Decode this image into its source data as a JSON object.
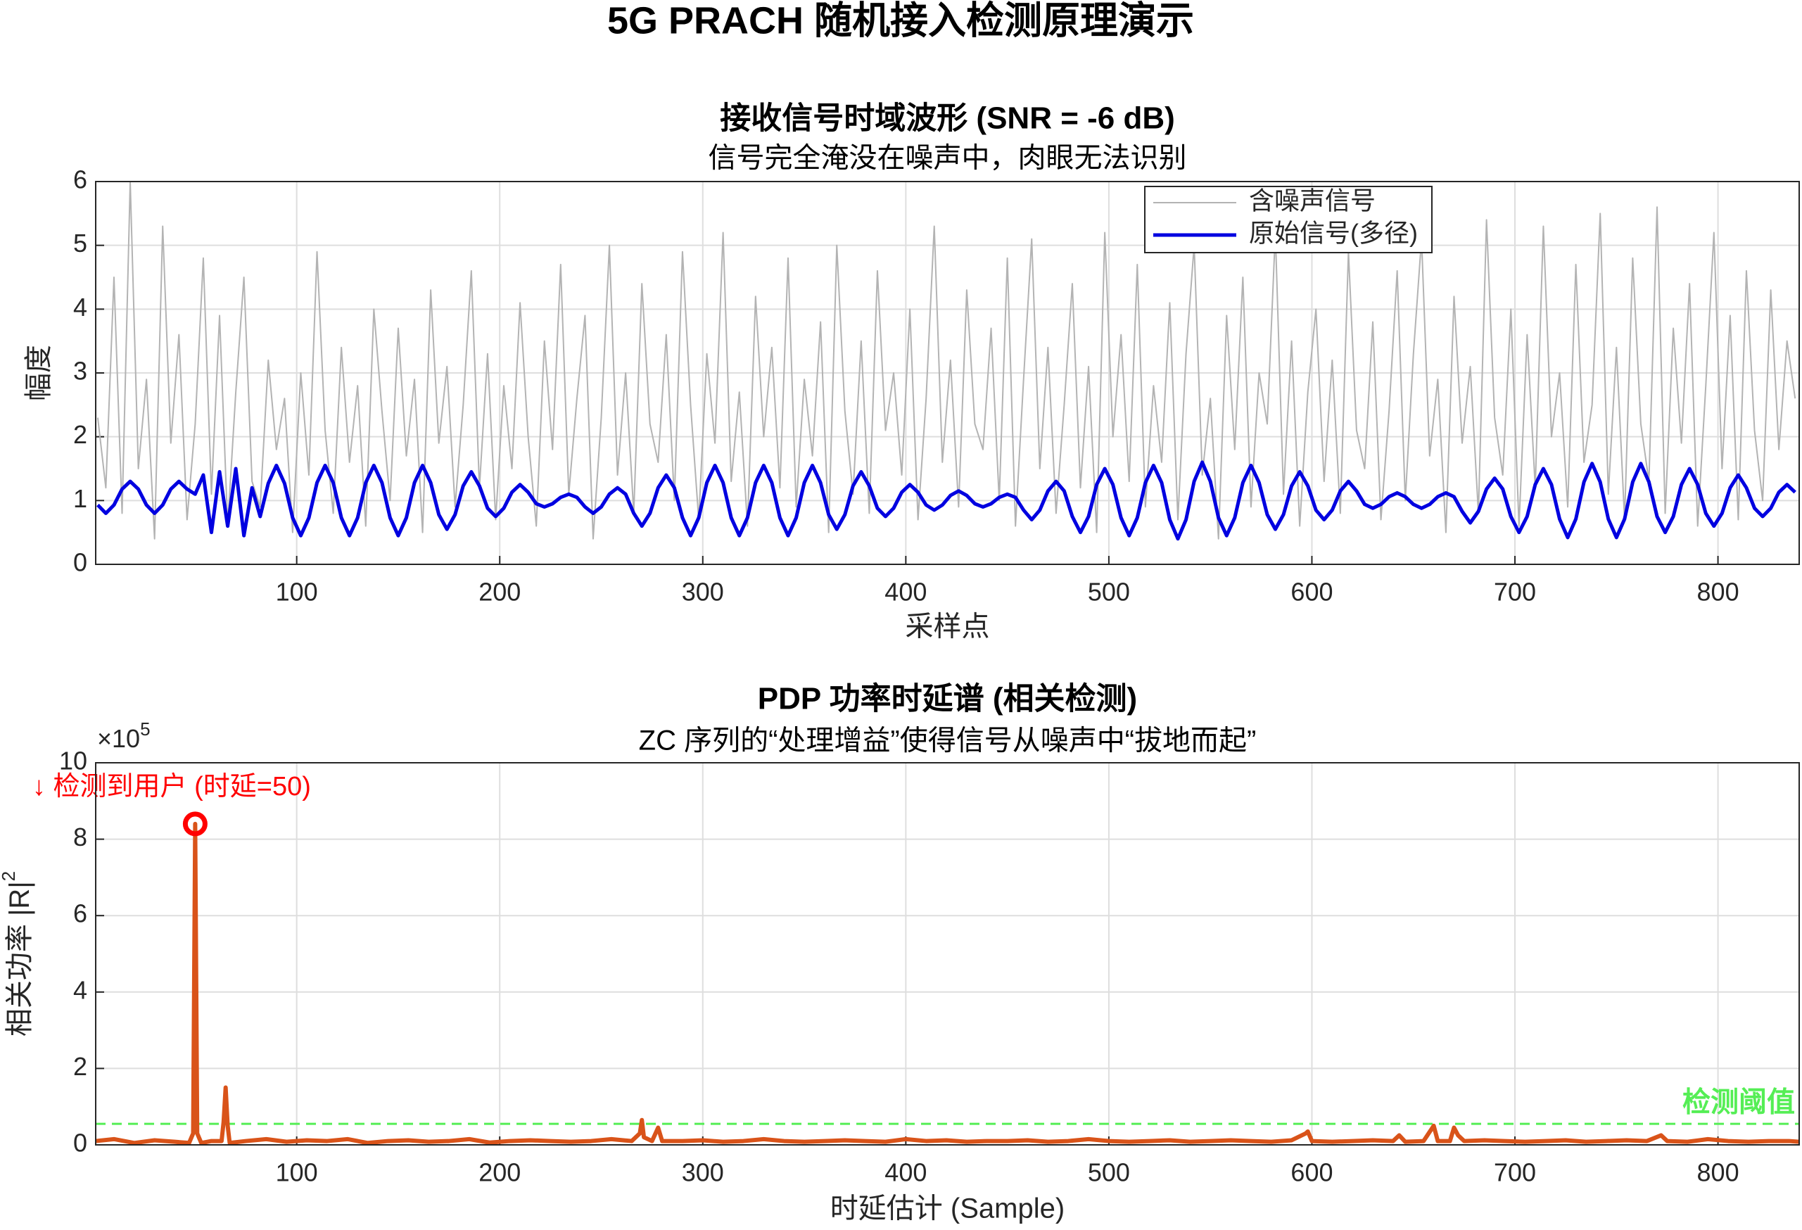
{
  "title": "5G PRACH 随机接入检测原理演示",
  "chart_data": [
    {
      "type": "line",
      "title": "接收信号时域波形 (SNR = -6 dB)",
      "subtitle": "信号完全淹没在噪声中，肉眼无法识别",
      "xlabel": "采样点",
      "ylabel": "幅度",
      "grid": true,
      "legend": "top-right",
      "xlim": [
        1,
        840
      ],
      "xticks": [
        100,
        200,
        300,
        400,
        500,
        600,
        700,
        800
      ],
      "ylim": [
        0,
        6
      ],
      "yticks": [
        0,
        1,
        2,
        3,
        4,
        5,
        6
      ],
      "x": [
        2,
        6,
        10,
        14,
        18,
        22,
        26,
        30,
        34,
        38,
        42,
        46,
        50,
        54,
        58,
        62,
        66,
        70,
        74,
        78,
        82,
        86,
        90,
        94,
        98,
        102,
        106,
        110,
        114,
        118,
        122,
        126,
        130,
        134,
        138,
        142,
        146,
        150,
        154,
        158,
        162,
        166,
        170,
        174,
        178,
        182,
        186,
        190,
        194,
        198,
        202,
        206,
        210,
        214,
        218,
        222,
        226,
        230,
        234,
        238,
        242,
        246,
        250,
        254,
        258,
        262,
        266,
        270,
        274,
        278,
        282,
        286,
        290,
        294,
        298,
        302,
        306,
        310,
        314,
        318,
        322,
        326,
        330,
        334,
        338,
        342,
        346,
        350,
        354,
        358,
        362,
        366,
        370,
        374,
        378,
        382,
        386,
        390,
        394,
        398,
        402,
        406,
        410,
        414,
        418,
        422,
        426,
        430,
        434,
        438,
        442,
        446,
        450,
        454,
        458,
        462,
        466,
        470,
        474,
        478,
        482,
        486,
        490,
        494,
        498,
        502,
        506,
        510,
        514,
        518,
        522,
        526,
        530,
        534,
        538,
        542,
        546,
        550,
        554,
        558,
        562,
        566,
        570,
        574,
        578,
        582,
        586,
        590,
        594,
        598,
        602,
        606,
        610,
        614,
        618,
        622,
        626,
        630,
        634,
        638,
        642,
        646,
        650,
        654,
        658,
        662,
        666,
        670,
        674,
        678,
        682,
        686,
        690,
        694,
        698,
        702,
        706,
        710,
        714,
        718,
        722,
        726,
        730,
        734,
        738,
        742,
        746,
        750,
        754,
        758,
        762,
        766,
        770,
        774,
        778,
        782,
        786,
        790,
        794,
        798,
        802,
        806,
        810,
        814,
        818,
        822,
        826,
        830,
        834,
        838
      ],
      "series": [
        {
          "name": "含噪声信号",
          "color": "#b3b3b3",
          "width": 2,
          "values": [
            2.3,
            1.2,
            4.5,
            0.8,
            6.0,
            1.5,
            2.9,
            0.4,
            5.3,
            1.9,
            3.6,
            0.7,
            2.2,
            4.8,
            1.1,
            3.9,
            0.6,
            2.7,
            4.5,
            1.3,
            0.9,
            3.2,
            1.8,
            2.6,
            0.5,
            3.0,
            1.4,
            4.9,
            2.1,
            0.8,
            3.4,
            1.6,
            2.8,
            0.6,
            4.0,
            2.4,
            1.0,
            3.7,
            1.7,
            2.9,
            0.5,
            4.3,
            1.9,
            3.1,
            0.9,
            2.5,
            4.6,
            1.2,
            3.3,
            0.7,
            2.8,
            1.5,
            4.1,
            2.0,
            0.6,
            3.5,
            1.8,
            4.7,
            1.1,
            2.6,
            3.9,
            0.4,
            2.3,
            5.0,
            1.4,
            3.0,
            0.8,
            4.4,
            2.2,
            1.6,
            3.6,
            1.0,
            4.9,
            2.5,
            0.7,
            3.3,
            1.9,
            5.2,
            1.3,
            2.7,
            0.6,
            4.2,
            2.0,
            3.4,
            1.2,
            4.8,
            0.9,
            2.9,
            1.7,
            3.8,
            0.5,
            5.0,
            2.4,
            1.1,
            3.5,
            0.8,
            4.6,
            2.1,
            3.0,
            1.4,
            4.0,
            0.7,
            2.6,
            5.3,
            1.6,
            3.2,
            0.9,
            4.3,
            2.2,
            1.8,
            3.7,
            1.0,
            4.8,
            0.6,
            2.9,
            5.1,
            1.5,
            3.4,
            0.8,
            2.5,
            4.4,
            1.2,
            3.1,
            0.5,
            5.2,
            2.0,
            3.6,
            1.3,
            4.7,
            0.9,
            2.8,
            1.6,
            4.1,
            0.7,
            3.3,
            5.0,
            1.4,
            2.6,
            0.4,
            3.9,
            1.8,
            4.5,
            0.9,
            3.0,
            2.2,
            5.2,
            1.1,
            3.5,
            0.6,
            2.7,
            4.0,
            1.3,
            3.2,
            0.8,
            4.9,
            2.1,
            1.5,
            3.8,
            0.7,
            2.4,
            4.6,
            1.0,
            3.3,
            5.1,
            1.7,
            2.9,
            0.5,
            4.2,
            1.9,
            3.1,
            0.8,
            5.4,
            2.3,
            1.4,
            4.0,
            0.6,
            3.6,
            1.2,
            5.3,
            2.0,
            3.0,
            0.9,
            4.7,
            1.6,
            2.5,
            5.5,
            1.1,
            3.4,
            0.7,
            4.8,
            2.2,
            1.3,
            5.6,
            0.8,
            3.7,
            1.9,
            4.4,
            0.6,
            2.8,
            5.2,
            1.5,
            3.9,
            0.7,
            4.6,
            2.1,
            1.0,
            4.3,
            1.8,
            3.5,
            2.6
          ]
        },
        {
          "name": "原始信号(多径)",
          "color": "#0000e0",
          "width": 5,
          "values": [
            0.93,
            0.8,
            0.93,
            1.18,
            1.3,
            1.18,
            0.93,
            0.8,
            0.93,
            1.18,
            1.3,
            1.18,
            1.1,
            1.4,
            0.5,
            1.45,
            0.6,
            1.5,
            0.45,
            1.2,
            0.75,
            1.27,
            1.55,
            1.27,
            0.73,
            0.45,
            0.73,
            1.28,
            1.55,
            1.28,
            0.73,
            0.45,
            0.73,
            1.28,
            1.55,
            1.28,
            0.73,
            0.45,
            0.73,
            1.28,
            1.55,
            1.28,
            0.78,
            0.55,
            0.78,
            1.23,
            1.45,
            1.23,
            0.88,
            0.75,
            0.88,
            1.13,
            1.25,
            1.13,
            0.95,
            0.9,
            0.95,
            1.05,
            1.1,
            1.05,
            0.9,
            0.8,
            0.9,
            1.1,
            1.2,
            1.1,
            0.8,
            0.6,
            0.8,
            1.2,
            1.4,
            1.2,
            0.73,
            0.45,
            0.73,
            1.28,
            1.55,
            1.28,
            0.73,
            0.45,
            0.73,
            1.28,
            1.55,
            1.28,
            0.73,
            0.45,
            0.73,
            1.28,
            1.55,
            1.28,
            0.78,
            0.55,
            0.78,
            1.23,
            1.45,
            1.23,
            0.88,
            0.75,
            0.88,
            1.13,
            1.25,
            1.13,
            0.93,
            0.85,
            0.93,
            1.08,
            1.15,
            1.08,
            0.95,
            0.9,
            0.95,
            1.05,
            1.1,
            1.05,
            0.85,
            0.7,
            0.85,
            1.15,
            1.3,
            1.15,
            0.75,
            0.5,
            0.75,
            1.25,
            1.5,
            1.25,
            0.73,
            0.45,
            0.73,
            1.28,
            1.55,
            1.28,
            0.7,
            0.4,
            0.7,
            1.3,
            1.6,
            1.3,
            0.73,
            0.45,
            0.73,
            1.28,
            1.55,
            1.28,
            0.78,
            0.55,
            0.78,
            1.23,
            1.45,
            1.23,
            0.85,
            0.7,
            0.85,
            1.15,
            1.3,
            1.15,
            0.94,
            0.88,
            0.94,
            1.06,
            1.12,
            1.06,
            0.94,
            0.88,
            0.94,
            1.06,
            1.12,
            1.06,
            0.83,
            0.65,
            0.83,
            1.18,
            1.35,
            1.18,
            0.75,
            0.5,
            0.75,
            1.25,
            1.5,
            1.25,
            0.71,
            0.42,
            0.71,
            1.29,
            1.58,
            1.29,
            0.71,
            0.42,
            0.71,
            1.29,
            1.58,
            1.29,
            0.75,
            0.5,
            0.75,
            1.25,
            1.5,
            1.25,
            0.8,
            0.6,
            0.8,
            1.2,
            1.4,
            1.2,
            0.88,
            0.75,
            0.88,
            1.13,
            1.25,
            1.13
          ]
        }
      ]
    },
    {
      "type": "line",
      "title": "PDP 功率时延谱 (相关检测)",
      "subtitle": "ZC 序列的“处理增益”使得信号从噪声中“拔地而起”",
      "xlabel": "时延估计 (Sample)",
      "ylabel": "相关功率  |R|",
      "ylabel_power": "2",
      "y_multiplier": "×10",
      "y_multiplier_power": "5",
      "grid": true,
      "xlim": [
        1,
        840
      ],
      "xticks": [
        100,
        200,
        300,
        400,
        500,
        600,
        700,
        800
      ],
      "ylim": [
        0,
        10
      ],
      "yticks": [
        0,
        2,
        4,
        6,
        8,
        10
      ],
      "x": [
        1,
        10,
        20,
        30,
        40,
        47,
        49,
        50,
        51,
        53,
        58,
        63,
        64,
        65,
        66,
        67,
        75,
        85,
        95,
        105,
        115,
        125,
        135,
        145,
        155,
        165,
        175,
        185,
        195,
        205,
        215,
        225,
        235,
        245,
        255,
        265,
        269,
        270,
        271,
        275,
        278,
        280,
        290,
        300,
        310,
        320,
        330,
        340,
        350,
        360,
        370,
        380,
        390,
        400,
        410,
        420,
        430,
        440,
        450,
        460,
        470,
        480,
        490,
        500,
        510,
        520,
        530,
        540,
        550,
        560,
        570,
        580,
        590,
        597,
        598,
        600,
        610,
        620,
        630,
        640,
        643,
        646,
        655,
        660,
        662,
        668,
        670,
        672,
        675,
        685,
        695,
        705,
        715,
        725,
        735,
        745,
        755,
        765,
        772,
        775,
        785,
        795,
        805,
        815,
        825,
        835,
        840
      ],
      "series": [
        {
          "name": "PDP",
          "color": "#d95319",
          "width": 6,
          "values": [
            0.1,
            0.15,
            0.05,
            0.12,
            0.08,
            0.05,
            0.3,
            8.4,
            0.3,
            0.05,
            0.1,
            0.1,
            0.6,
            1.5,
            0.5,
            0.05,
            0.1,
            0.15,
            0.08,
            0.12,
            0.1,
            0.15,
            0.05,
            0.1,
            0.12,
            0.08,
            0.1,
            0.15,
            0.06,
            0.1,
            0.12,
            0.1,
            0.08,
            0.1,
            0.15,
            0.1,
            0.3,
            0.65,
            0.2,
            0.1,
            0.45,
            0.1,
            0.1,
            0.12,
            0.08,
            0.1,
            0.15,
            0.1,
            0.08,
            0.1,
            0.12,
            0.1,
            0.08,
            0.15,
            0.1,
            0.12,
            0.08,
            0.1,
            0.1,
            0.12,
            0.08,
            0.1,
            0.15,
            0.1,
            0.08,
            0.1,
            0.12,
            0.08,
            0.1,
            0.12,
            0.1,
            0.08,
            0.12,
            0.3,
            0.35,
            0.1,
            0.08,
            0.1,
            0.12,
            0.1,
            0.25,
            0.08,
            0.1,
            0.5,
            0.1,
            0.1,
            0.45,
            0.25,
            0.1,
            0.12,
            0.1,
            0.08,
            0.1,
            0.12,
            0.08,
            0.1,
            0.12,
            0.1,
            0.25,
            0.1,
            0.08,
            0.15,
            0.1,
            0.08,
            0.1,
            0.1,
            0.08
          ]
        }
      ],
      "threshold": {
        "value": 0.55,
        "label": "检测阈值",
        "color": "#55ee55"
      },
      "annotation": {
        "text": "↓ 检测到用户  (时延=50)",
        "x": 50,
        "y": 8.4,
        "color": "#ff0000"
      }
    }
  ]
}
